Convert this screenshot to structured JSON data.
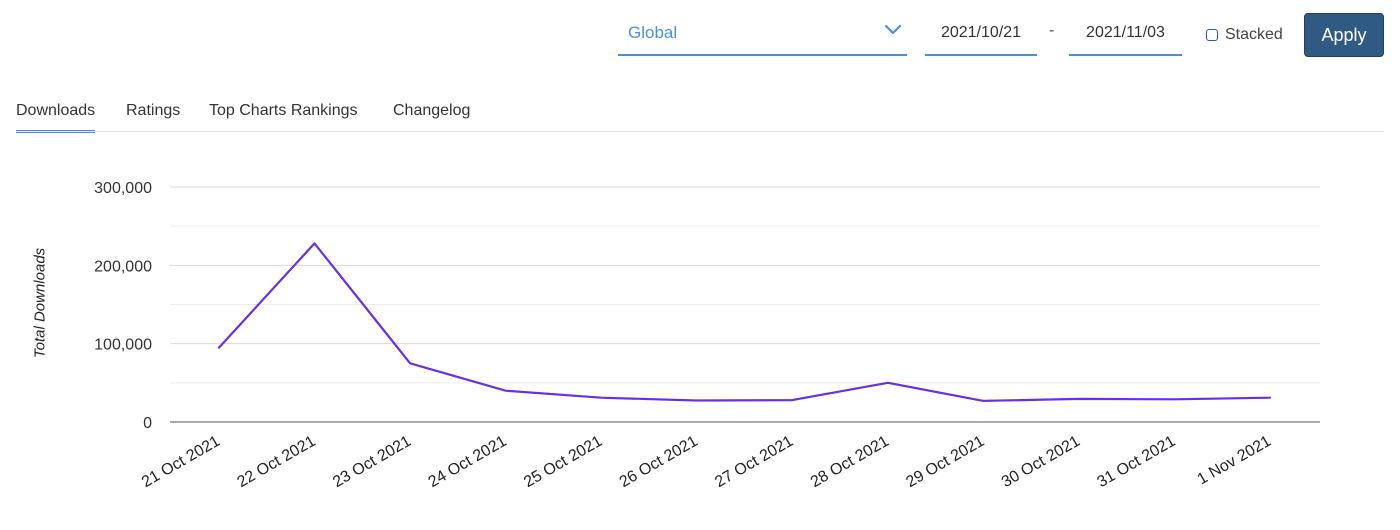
{
  "toolbar": {
    "region": {
      "value": "Global",
      "icon": "chevron-down-icon"
    },
    "date_from": "2021/10/21",
    "date_separator": "-",
    "date_to": "2021/11/03",
    "stacked_label": "Stacked",
    "stacked_checked": false,
    "apply_label": "Apply"
  },
  "tabs": [
    {
      "label": "Downloads",
      "active": true
    },
    {
      "label": "Ratings",
      "active": false
    },
    {
      "label": "Top Charts Rankings",
      "active": false
    },
    {
      "label": "Changelog",
      "active": false
    }
  ],
  "colors": {
    "accent": "#4a90d9",
    "apply_bg": "#2e5a83",
    "series": "#6a2ee8"
  },
  "chart_data": {
    "type": "line",
    "title": "",
    "xlabel": "",
    "ylabel": "Total Downloads",
    "ylim": [
      0,
      300000
    ],
    "yticks": [
      "0",
      "100,000",
      "200,000",
      "300,000"
    ],
    "grid": true,
    "categories": [
      "21 Oct 2021",
      "22 Oct 2021",
      "23 Oct 2021",
      "24 Oct 2021",
      "25 Oct 2021",
      "26 Oct 2021",
      "27 Oct 2021",
      "28 Oct 2021",
      "29 Oct 2021",
      "30 Oct 2021",
      "31 Oct 2021",
      "1 Nov 2021"
    ],
    "series": [
      {
        "values": [
          95000,
          228000,
          75000,
          40000,
          31000,
          27500,
          28000,
          50000,
          27000,
          29500,
          29000,
          31000
        ]
      }
    ]
  }
}
